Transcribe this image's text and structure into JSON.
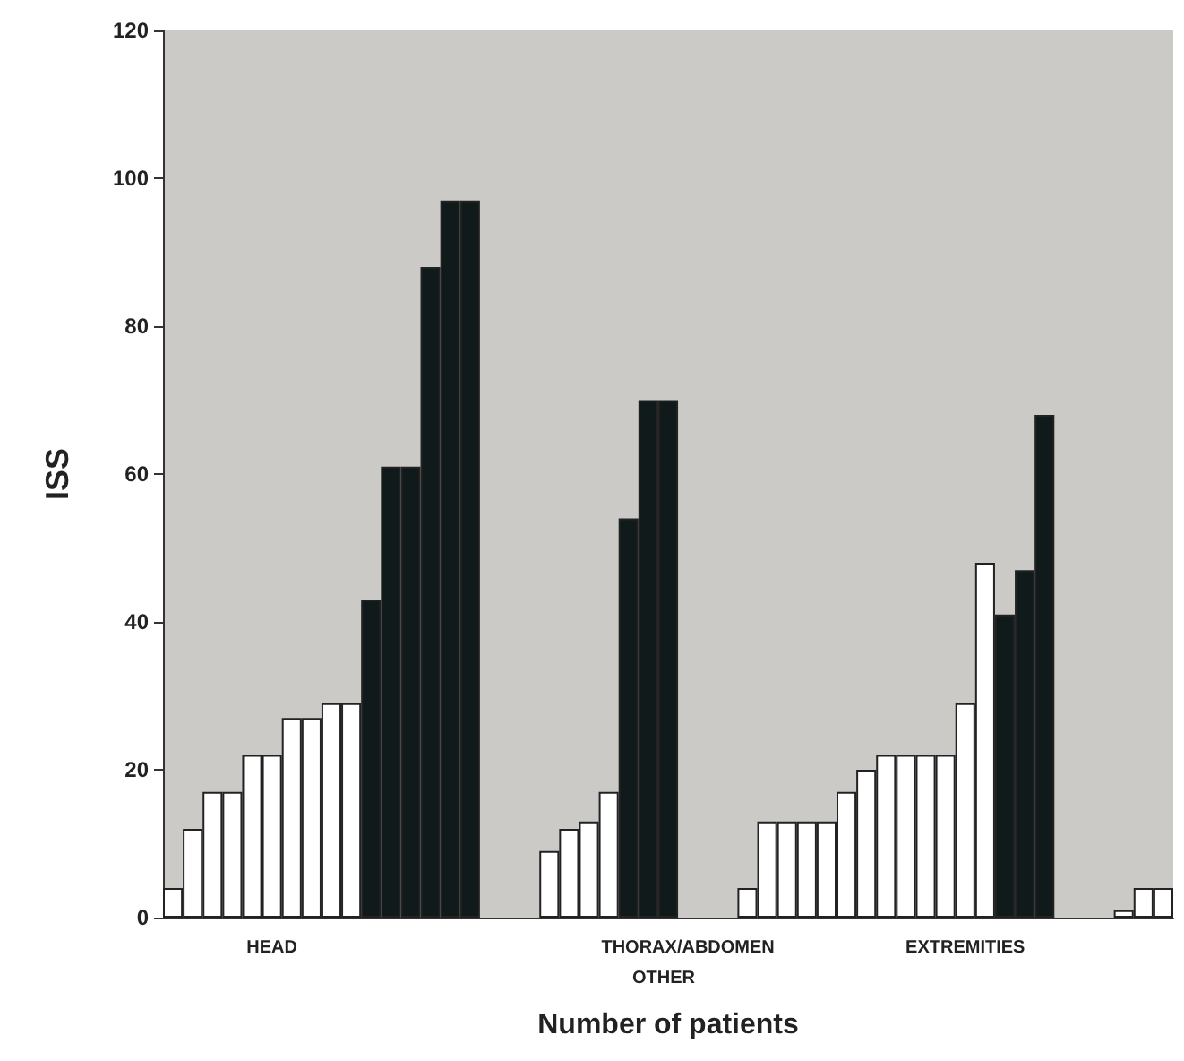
{
  "chart_data": {
    "type": "bar",
    "xlabel": "Number of patients",
    "ylabel": "ISS",
    "categories": [
      null,
      null,
      null,
      null,
      null,
      "HEAD",
      null,
      null,
      null,
      null,
      null,
      null,
      null,
      null,
      null,
      null,
      null,
      null,
      null,
      null,
      null,
      null,
      null,
      null,
      null,
      null,
      "THORAX/ABDOMEN",
      null,
      null,
      null,
      null,
      null,
      null,
      null,
      null,
      null,
      null,
      null,
      null,
      null,
      "EXTREMITIES",
      null,
      null,
      null,
      null,
      null,
      null,
      null,
      null,
      null,
      null
    ],
    "series": [
      {
        "color": "#ffffff",
        "values": [
          4,
          12,
          17,
          17,
          22,
          22,
          27,
          27,
          29,
          29,
          null,
          null,
          null,
          null,
          null,
          null,
          null,
          null,
          null,
          9,
          12,
          13,
          17,
          null,
          null,
          null,
          null,
          null,
          null,
          4,
          13,
          13,
          13,
          13,
          17,
          20,
          22,
          22,
          22,
          22,
          29,
          48,
          null,
          null,
          null,
          null,
          null,
          null,
          1,
          4,
          4
        ]
      },
      {
        "color": "#111a1a",
        "values": [
          null,
          null,
          null,
          null,
          null,
          null,
          null,
          null,
          null,
          null,
          43,
          61,
          61,
          88,
          97,
          97,
          null,
          null,
          null,
          null,
          null,
          null,
          null,
          54,
          70,
          70,
          null,
          null,
          null,
          null,
          null,
          null,
          null,
          null,
          null,
          null,
          null,
          null,
          null,
          null,
          null,
          null,
          41,
          47,
          68,
          null,
          null,
          null,
          null,
          null,
          null
        ]
      }
    ],
    "annotations": [
      "OTHER"
    ],
    "ylim": [
      0,
      120
    ],
    "yticks": [
      0,
      20,
      40,
      60,
      80,
      100,
      120
    ],
    "grid": false
  }
}
